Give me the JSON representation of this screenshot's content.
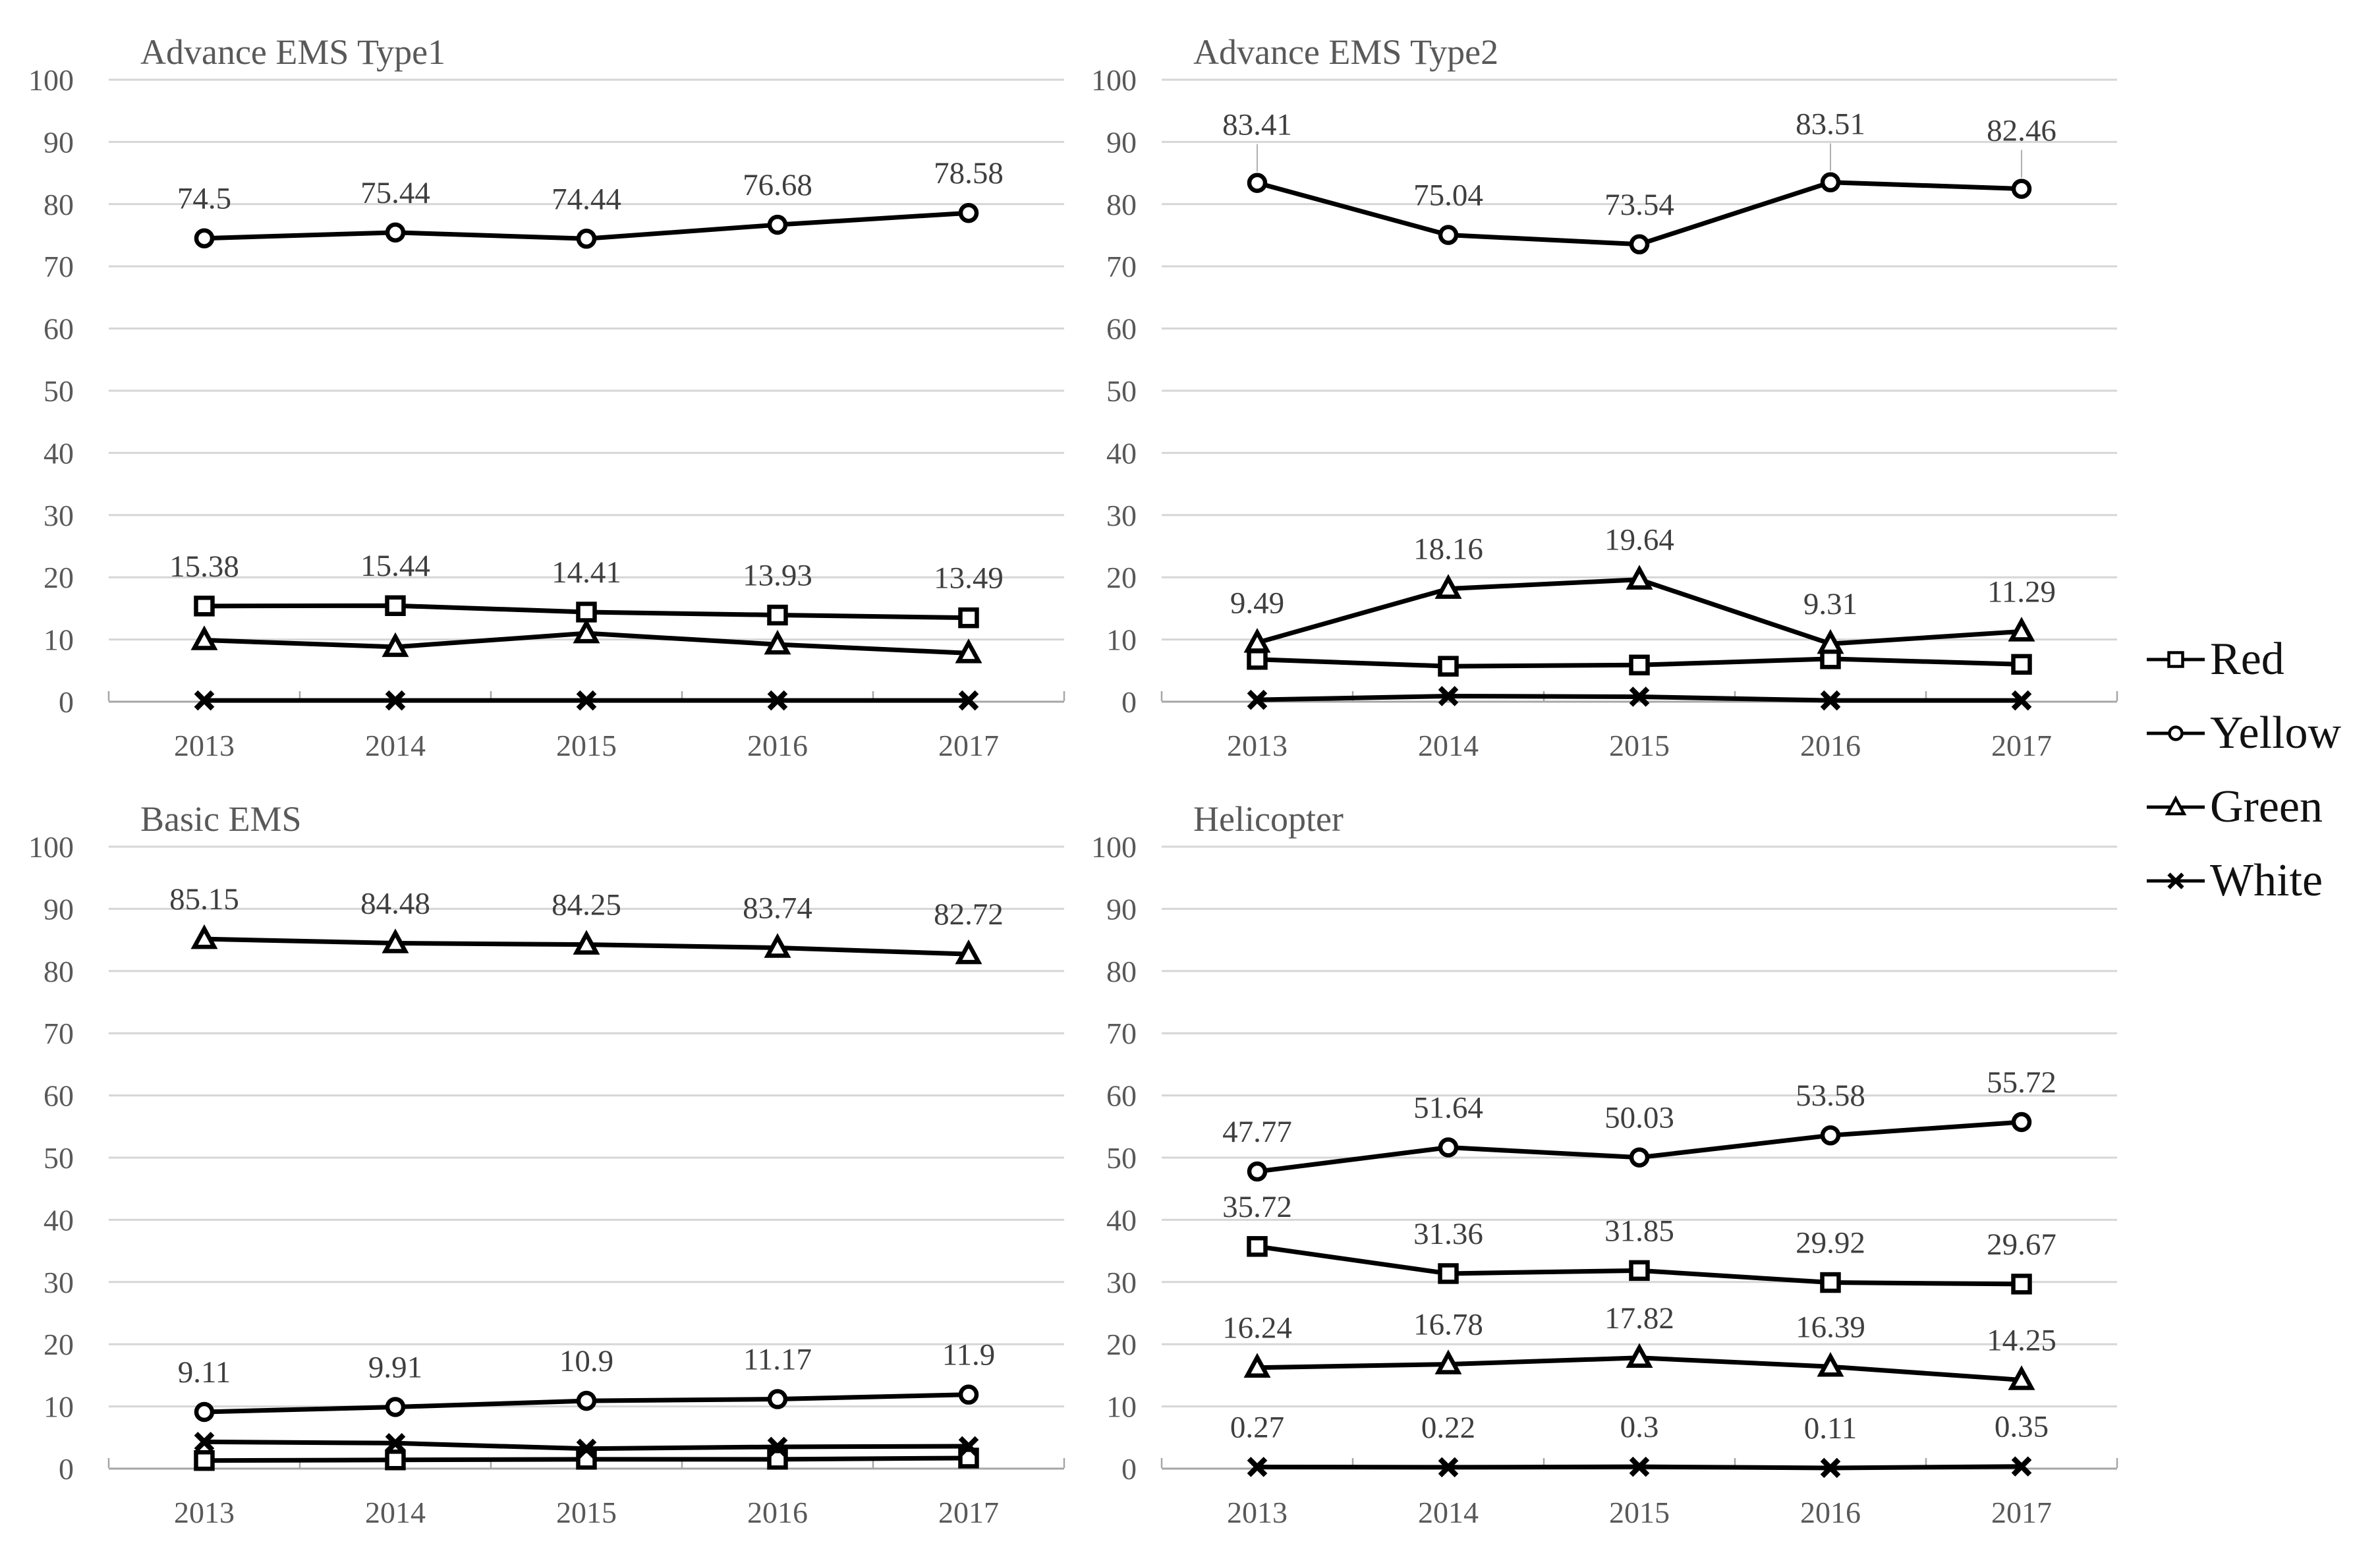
{
  "page": {
    "background": "#ffffff",
    "series_color": "#000000",
    "grid_color": "#d6d6d6",
    "axis_color": "#a6a6a6",
    "axis_text_color": "#595959",
    "title_color": "#595959",
    "data_label_color": "#3f3f3f",
    "leader_color": "#b0b0b0"
  },
  "legend": {
    "position": "right-middle",
    "items": [
      {
        "label": "Red",
        "marker": "square"
      },
      {
        "label": "Yellow",
        "marker": "circle"
      },
      {
        "label": "Green",
        "marker": "triangle"
      },
      {
        "label": "White",
        "marker": "x"
      }
    ]
  },
  "axis": {
    "y_min": 0,
    "y_max": 100,
    "y_step": 10,
    "grid": true,
    "categories": [
      "2013",
      "2014",
      "2015",
      "2016",
      "2017"
    ]
  },
  "chart_data": [
    {
      "type": "line",
      "title": "Advance EMS Type1",
      "categories": [
        "2013",
        "2014",
        "2015",
        "2016",
        "2017"
      ],
      "xlabel": "",
      "ylabel": "",
      "ylim": [
        0,
        100
      ],
      "series": [
        {
          "name": "Red",
          "marker": "square",
          "values": [
            15.38,
            15.44,
            14.41,
            13.93,
            13.49
          ],
          "labels_shown": true
        },
        {
          "name": "Yellow",
          "marker": "circle",
          "values": [
            74.5,
            75.44,
            74.44,
            76.68,
            78.58
          ],
          "labels_shown": true
        },
        {
          "name": "Green",
          "marker": "triangle",
          "values": [
            9.9,
            8.8,
            11.0,
            9.2,
            7.8
          ],
          "labels_shown": false,
          "estimated": true
        },
        {
          "name": "White",
          "marker": "x",
          "values": [
            0.2,
            0.2,
            0.2,
            0.2,
            0.2
          ],
          "labels_shown": false,
          "estimated": true
        }
      ]
    },
    {
      "type": "line",
      "title": "Advance EMS Type2",
      "categories": [
        "2013",
        "2014",
        "2015",
        "2016",
        "2017"
      ],
      "xlabel": "",
      "ylabel": "",
      "ylim": [
        0,
        100
      ],
      "series": [
        {
          "name": "Red",
          "marker": "square",
          "values": [
            6.8,
            5.7,
            5.9,
            6.9,
            6.0
          ],
          "labels_shown": false,
          "estimated": true
        },
        {
          "name": "Yellow",
          "marker": "circle",
          "values": [
            83.41,
            75.04,
            73.54,
            83.51,
            82.46
          ],
          "labels_shown": true,
          "label_dy": [
            -73,
            -45,
            -45,
            -73,
            -73
          ],
          "label_leader": [
            true,
            false,
            false,
            true,
            true
          ]
        },
        {
          "name": "Green",
          "marker": "triangle",
          "values": [
            9.49,
            18.16,
            19.64,
            9.31,
            11.29
          ],
          "labels_shown": true
        },
        {
          "name": "White",
          "marker": "x",
          "values": [
            0.3,
            0.9,
            0.8,
            0.2,
            0.2
          ],
          "labels_shown": false,
          "estimated": true
        }
      ]
    },
    {
      "type": "line",
      "title": "Basic EMS",
      "categories": [
        "2013",
        "2014",
        "2015",
        "2016",
        "2017"
      ],
      "xlabel": "",
      "ylabel": "",
      "ylim": [
        0,
        100
      ],
      "series": [
        {
          "name": "Red",
          "marker": "square",
          "values": [
            1.3,
            1.4,
            1.5,
            1.5,
            1.7
          ],
          "labels_shown": false,
          "estimated": true
        },
        {
          "name": "Yellow",
          "marker": "circle",
          "values": [
            9.11,
            9.91,
            10.9,
            11.17,
            11.9
          ],
          "labels_shown": true
        },
        {
          "name": "Green",
          "marker": "triangle",
          "values": [
            85.15,
            84.48,
            84.25,
            83.74,
            82.72
          ],
          "labels_shown": true
        },
        {
          "name": "White",
          "marker": "x",
          "values": [
            4.3,
            4.1,
            3.2,
            3.5,
            3.6
          ],
          "labels_shown": false,
          "estimated": true
        }
      ]
    },
    {
      "type": "line",
      "title": "Helicopter",
      "categories": [
        "2013",
        "2014",
        "2015",
        "2016",
        "2017"
      ],
      "xlabel": "",
      "ylabel": "",
      "ylim": [
        0,
        100
      ],
      "series": [
        {
          "name": "Red",
          "marker": "square",
          "values": [
            35.72,
            31.36,
            31.85,
            29.92,
            29.67
          ],
          "labels_shown": true
        },
        {
          "name": "Yellow",
          "marker": "circle",
          "values": [
            47.77,
            51.64,
            50.03,
            53.58,
            55.72
          ],
          "labels_shown": true
        },
        {
          "name": "Green",
          "marker": "triangle",
          "values": [
            16.24,
            16.78,
            17.82,
            16.39,
            14.25
          ],
          "labels_shown": true
        },
        {
          "name": "White",
          "marker": "x",
          "values": [
            0.27,
            0.22,
            0.3,
            0.11,
            0.35
          ],
          "labels_shown": true
        }
      ]
    }
  ]
}
